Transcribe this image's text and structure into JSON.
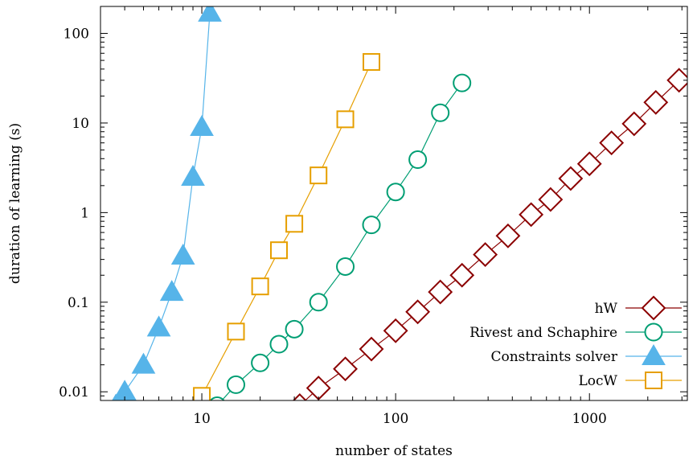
{
  "chart_data": {
    "type": "line",
    "title": "",
    "xlabel": "number of states",
    "ylabel": "duration of learning (s)",
    "xscale": "log",
    "yscale": "log",
    "xlim": [
      3,
      3200
    ],
    "ylim": [
      0.008,
      200
    ],
    "grid": false,
    "legend_position": "bottom-right",
    "xticks": [
      {
        "value": 10,
        "label": "10"
      },
      {
        "value": 100,
        "label": "100"
      },
      {
        "value": 1000,
        "label": "1000"
      }
    ],
    "yticks": [
      {
        "value": 0.01,
        "label": "0.01"
      },
      {
        "value": 0.1,
        "label": "0.1"
      },
      {
        "value": 1,
        "label": "1"
      },
      {
        "value": 10,
        "label": "10"
      },
      {
        "value": 100,
        "label": "100"
      }
    ],
    "series": [
      {
        "name": "hW",
        "color": "#8b0000",
        "marker": "diamond-open",
        "x": [
          32,
          40,
          55,
          75,
          100,
          130,
          170,
          220,
          290,
          380,
          500,
          630,
          800,
          1000,
          1300,
          1700,
          2200,
          2900
        ],
        "y": [
          0.007,
          0.011,
          0.018,
          0.03,
          0.048,
          0.078,
          0.13,
          0.2,
          0.34,
          0.55,
          0.95,
          1.4,
          2.4,
          3.5,
          6.0,
          9.8,
          17,
          30
        ]
      },
      {
        "name": "Rivest and Schaphire",
        "color": "#009e73",
        "marker": "circle-open",
        "x": [
          12,
          15,
          20,
          25,
          30,
          40,
          55,
          75,
          100,
          130,
          170,
          220
        ],
        "y": [
          0.007,
          0.012,
          0.021,
          0.034,
          0.05,
          0.1,
          0.25,
          0.73,
          1.7,
          3.9,
          13,
          28
        ]
      },
      {
        "name": "Constraints solver",
        "color": "#56b4e9",
        "marker": "triangle-filled",
        "x": [
          3.6,
          4,
          5,
          6,
          7,
          8,
          9,
          10,
          11
        ],
        "y": [
          0.007,
          0.01,
          0.02,
          0.052,
          0.13,
          0.33,
          2.5,
          9.0,
          170
        ]
      },
      {
        "name": "LocW",
        "color": "#e69f00",
        "marker": "square-open",
        "x": [
          10,
          15,
          20,
          25,
          30,
          40,
          55,
          75
        ],
        "y": [
          0.009,
          0.047,
          0.15,
          0.38,
          0.75,
          2.6,
          11,
          48
        ]
      }
    ]
  }
}
